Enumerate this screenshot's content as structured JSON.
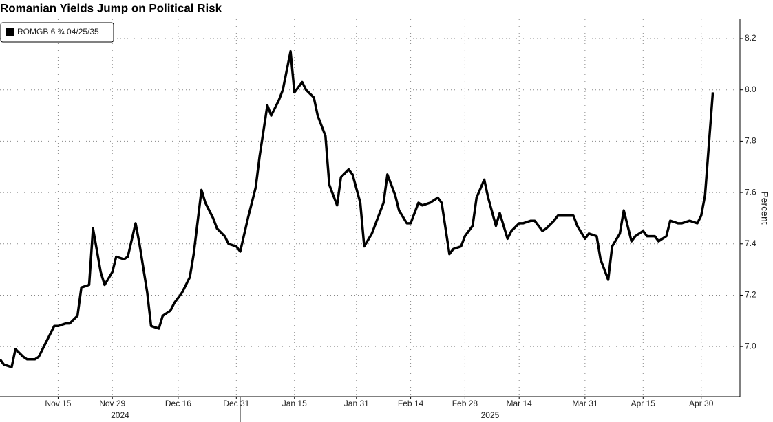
{
  "chart_data": {
    "type": "line",
    "title": "Romanian Yields Jump on Political Risk",
    "y_label": "Percent",
    "x": [
      "2024-10-31",
      "2024-11-01",
      "2024-11-03",
      "2024-11-04",
      "2024-11-06",
      "2024-11-07",
      "2024-11-09",
      "2024-11-10",
      "2024-11-12",
      "2024-11-14",
      "2024-11-15",
      "2024-11-17",
      "2024-11-18",
      "2024-11-20",
      "2024-11-21",
      "2024-11-23",
      "2024-11-24",
      "2024-11-26",
      "2024-11-27",
      "2024-11-29",
      "2024-11-30",
      "2024-12-02",
      "2024-12-03",
      "2024-12-05",
      "2024-12-06",
      "2024-12-08",
      "2024-12-09",
      "2024-12-11",
      "2024-12-12",
      "2024-12-14",
      "2024-12-15",
      "2024-12-17",
      "2024-12-19",
      "2024-12-20",
      "2024-12-22",
      "2024-12-23",
      "2024-12-25",
      "2024-12-26",
      "2024-12-28",
      "2024-12-29",
      "2024-12-31",
      "2025-01-01",
      "2025-01-03",
      "2025-01-05",
      "2025-01-06",
      "2025-01-08",
      "2025-01-09",
      "2025-01-11",
      "2025-01-12",
      "2025-01-14",
      "2025-01-15",
      "2025-01-17",
      "2025-01-18",
      "2025-01-20",
      "2025-01-21",
      "2025-01-23",
      "2025-01-24",
      "2025-01-26",
      "2025-01-27",
      "2025-01-29",
      "2025-01-30",
      "2025-02-01",
      "2025-02-02",
      "2025-02-04",
      "2025-02-05",
      "2025-02-07",
      "2025-02-08",
      "2025-02-10",
      "2025-02-11",
      "2025-02-13",
      "2025-02-14",
      "2025-02-16",
      "2025-02-17",
      "2025-02-19",
      "2025-02-21",
      "2025-02-22",
      "2025-02-24",
      "2025-02-25",
      "2025-02-27",
      "2025-02-28",
      "2025-03-02",
      "2025-03-03",
      "2025-03-05",
      "2025-03-06",
      "2025-03-08",
      "2025-03-09",
      "2025-03-11",
      "2025-03-12",
      "2025-03-14",
      "2025-03-15",
      "2025-03-17",
      "2025-03-18",
      "2025-03-20",
      "2025-03-21",
      "2025-03-23",
      "2025-03-24",
      "2025-03-26",
      "2025-03-28",
      "2025-03-29",
      "2025-03-31",
      "2025-04-01",
      "2025-04-03",
      "2025-04-04",
      "2025-04-06",
      "2025-04-07",
      "2025-04-09",
      "2025-04-10",
      "2025-04-12",
      "2025-04-13",
      "2025-04-15",
      "2025-04-16",
      "2025-04-18",
      "2025-04-19",
      "2025-04-21",
      "2025-04-22",
      "2025-04-24",
      "2025-04-25",
      "2025-04-27",
      "2025-04-29",
      "2025-04-30",
      "2025-05-01",
      "2025-05-03"
    ],
    "series": [
      {
        "name": "ROMGB 6 ¾ 04/25/35",
        "color": "#000000",
        "values": [
          6.95,
          6.93,
          6.92,
          6.99,
          6.96,
          6.95,
          6.95,
          6.96,
          7.02,
          7.08,
          7.08,
          7.09,
          7.09,
          7.12,
          7.23,
          7.24,
          7.46,
          7.29,
          7.24,
          7.29,
          7.35,
          7.34,
          7.35,
          7.48,
          7.4,
          7.21,
          7.08,
          7.07,
          7.12,
          7.14,
          7.17,
          7.21,
          7.27,
          7.36,
          7.61,
          7.56,
          7.5,
          7.46,
          7.43,
          7.4,
          7.39,
          7.37,
          7.5,
          7.62,
          7.74,
          7.94,
          7.9,
          7.96,
          8.0,
          8.15,
          7.99,
          8.03,
          8.0,
          7.97,
          7.9,
          7.82,
          7.63,
          7.55,
          7.66,
          7.69,
          7.67,
          7.56,
          7.39,
          7.44,
          7.48,
          7.56,
          7.67,
          7.59,
          7.53,
          7.48,
          7.48,
          7.56,
          7.55,
          7.56,
          7.58,
          7.56,
          7.36,
          7.38,
          7.39,
          7.43,
          7.47,
          7.58,
          7.65,
          7.58,
          7.47,
          7.52,
          7.42,
          7.45,
          7.48,
          7.48,
          7.49,
          7.49,
          7.45,
          7.46,
          7.49,
          7.51,
          7.51,
          7.51,
          7.47,
          7.42,
          7.44,
          7.43,
          7.34,
          7.26,
          7.39,
          7.44,
          7.53,
          7.41,
          7.43,
          7.45,
          7.43,
          7.43,
          7.41,
          7.43,
          7.49,
          7.48,
          7.48,
          7.49,
          7.48,
          7.51,
          7.59,
          7.99
        ]
      }
    ],
    "xlim": [
      "2024-10-31",
      "2025-05-10"
    ],
    "xticks": [
      {
        "value": "2024-11-15",
        "label": "Nov 15"
      },
      {
        "value": "2024-11-29",
        "label": "Nov 29"
      },
      {
        "value": "2024-12-16",
        "label": "Dec 16"
      },
      {
        "value": "2024-12-31",
        "label": "Dec 31"
      },
      {
        "value": "2025-01-15",
        "label": "Jan 15"
      },
      {
        "value": "2025-01-31",
        "label": "Jan 31"
      },
      {
        "value": "2025-02-14",
        "label": "Feb 14"
      },
      {
        "value": "2025-02-28",
        "label": "Feb 28"
      },
      {
        "value": "2025-03-14",
        "label": "Mar 14"
      },
      {
        "value": "2025-03-31",
        "label": "Mar 31"
      },
      {
        "value": "2025-04-15",
        "label": "Apr 15"
      },
      {
        "value": "2025-04-30",
        "label": "Apr 30"
      }
    ],
    "years": [
      2024,
      2025
    ],
    "ylim": [
      6.805,
      8.275
    ],
    "yticks": [
      {
        "value": 7.0,
        "label": "7.0"
      },
      {
        "value": 7.2,
        "label": "7.2"
      },
      {
        "value": 7.4,
        "label": "7.4"
      },
      {
        "value": 7.6,
        "label": "7.6"
      },
      {
        "value": 7.8,
        "label": "7.8"
      },
      {
        "value": 8.0,
        "label": "8.0"
      },
      {
        "value": 8.2,
        "label": "8.2"
      }
    ],
    "grid": true,
    "legend": "top-left"
  }
}
